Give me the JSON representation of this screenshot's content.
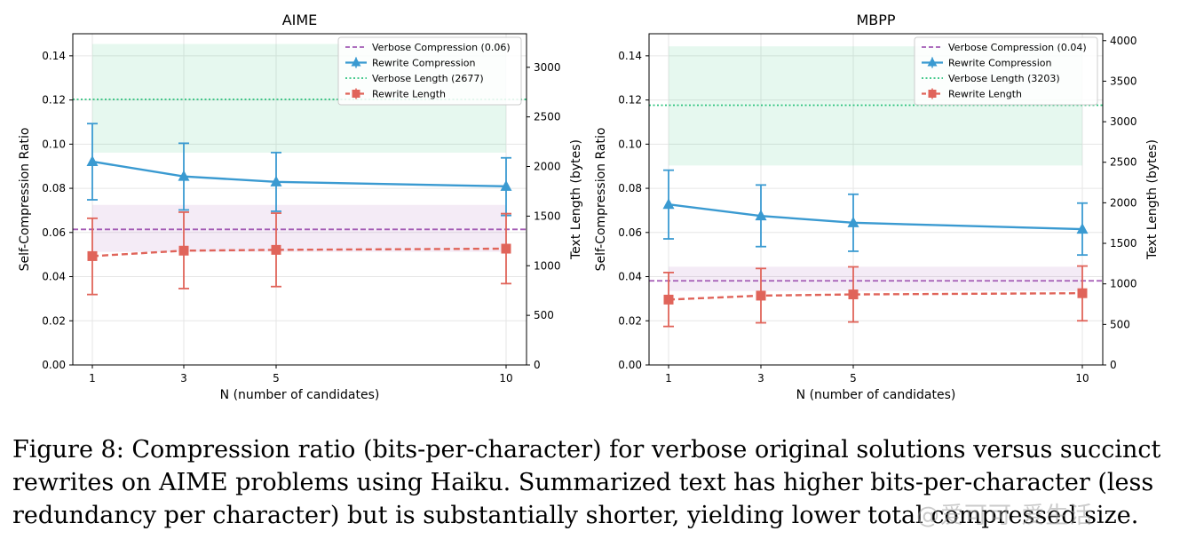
{
  "chart_data": [
    {
      "type": "line",
      "title": "AIME",
      "xlabel": "N (number of candidates)",
      "ylabel": "Self-Compression Ratio",
      "ylabel_right": "Text Length (bytes)",
      "x": [
        1,
        3,
        5,
        10
      ],
      "x_ticks": [
        "1",
        "3",
        "5",
        "10"
      ],
      "ylim": [
        0,
        0.15
      ],
      "y_ticks": [
        "0.00",
        "0.02",
        "0.04",
        "0.06",
        "0.08",
        "0.10",
        "0.12",
        "0.14"
      ],
      "y_tick_values": [
        0,
        0.02,
        0.04,
        0.06,
        0.08,
        0.1,
        0.12,
        0.14
      ],
      "y2lim": [
        0,
        3338
      ],
      "y2_ticks": [
        "0",
        "500",
        "1000",
        "1500",
        "2000",
        "2500",
        "3000"
      ],
      "y2_tick_values": [
        0,
        500,
        1000,
        1500,
        2000,
        2500,
        3000
      ],
      "series": [
        {
          "name": "Rewrite Compression",
          "axis": "left",
          "values": [
            0.0921,
            0.0854,
            0.0829,
            0.0809
          ],
          "err_low": [
            0.0748,
            0.0702,
            0.0696,
            0.0677
          ],
          "err_high": [
            0.1093,
            0.1004,
            0.0962,
            0.0938
          ],
          "color": "#3a9ad1",
          "marker": "triangle"
        },
        {
          "name": "Rewrite Length",
          "axis": "right",
          "values": [
            1097,
            1152,
            1160,
            1172
          ],
          "err_low": [
            710,
            770,
            790,
            820
          ],
          "err_high": [
            1478,
            1540,
            1530,
            1525
          ],
          "color": "#e0645a",
          "marker": "square"
        }
      ],
      "reference_lines": [
        {
          "name": "Verbose Compression (0.06)",
          "axis": "left",
          "value": 0.0614,
          "band": [
            0.0512,
            0.0725
          ],
          "color": "#a35bb5",
          "style": "dashed"
        },
        {
          "name": "Verbose Length (2677)",
          "axis": "right",
          "value": 2677,
          "band": [
            2140,
            3235
          ],
          "color": "#2ec27e",
          "style": "dotted"
        }
      ],
      "legend": [
        "Verbose Compression (0.06)",
        "Rewrite Compression",
        "Verbose Length (2677)",
        "Rewrite Length"
      ],
      "legend_position": "top-right",
      "grid": true
    },
    {
      "type": "line",
      "title": "MBPP",
      "xlabel": "N (number of candidates)",
      "ylabel": "Self-Compression Ratio",
      "ylabel_right": "Text Length (bytes)",
      "x": [
        1,
        3,
        5,
        10
      ],
      "x_ticks": [
        "1",
        "3",
        "5",
        "10"
      ],
      "ylim": [
        0,
        0.15
      ],
      "y_ticks": [
        "0.00",
        "0.02",
        "0.04",
        "0.06",
        "0.08",
        "0.10",
        "0.12",
        "0.14"
      ],
      "y_tick_values": [
        0,
        0.02,
        0.04,
        0.06,
        0.08,
        0.1,
        0.12,
        0.14
      ],
      "y2lim": [
        0,
        4085
      ],
      "y2_ticks": [
        "0",
        "500",
        "1000",
        "1500",
        "2000",
        "2500",
        "3000",
        "3500",
        "4000"
      ],
      "y2_tick_values": [
        0,
        500,
        1000,
        1500,
        2000,
        2500,
        3000,
        3500,
        4000
      ],
      "series": [
        {
          "name": "Rewrite Compression",
          "axis": "left",
          "values": [
            0.0727,
            0.0675,
            0.0644,
            0.0615
          ],
          "err_low": [
            0.0571,
            0.0536,
            0.0515,
            0.0498
          ],
          "err_high": [
            0.0882,
            0.0815,
            0.0773,
            0.0733
          ],
          "color": "#3a9ad1",
          "marker": "triangle"
        },
        {
          "name": "Rewrite Length",
          "axis": "right",
          "values": [
            806,
            855,
            870,
            885
          ],
          "err_low": [
            475,
            520,
            530,
            545
          ],
          "err_high": [
            1140,
            1190,
            1210,
            1220
          ],
          "color": "#e0645a",
          "marker": "square"
        }
      ],
      "reference_lines": [
        {
          "name": "Verbose Compression (0.04)",
          "axis": "left",
          "value": 0.0381,
          "band": [
            0.0335,
            0.0445
          ],
          "color": "#a35bb5",
          "style": "dashed"
        },
        {
          "name": "Verbose Length (3203)",
          "axis": "right",
          "value": 3203,
          "band": [
            2460,
            3930
          ],
          "color": "#2ec27e",
          "style": "dotted"
        }
      ],
      "legend": [
        "Verbose Compression (0.04)",
        "Rewrite Compression",
        "Verbose Length (3203)",
        "Rewrite Length"
      ],
      "legend_position": "top-right",
      "grid": true
    }
  ],
  "caption": {
    "line1": "Figure 8:  Compression ratio (bits-per-character) for verbose original solutions versus succinct",
    "line2": "rewrites on AIME problems using Haiku.  Summarized text has higher bits-per-character (less",
    "line3": "redundancy per character) but is substantially shorter, yielding lower total compressed size."
  },
  "watermark": "@爱可可-爱生活"
}
